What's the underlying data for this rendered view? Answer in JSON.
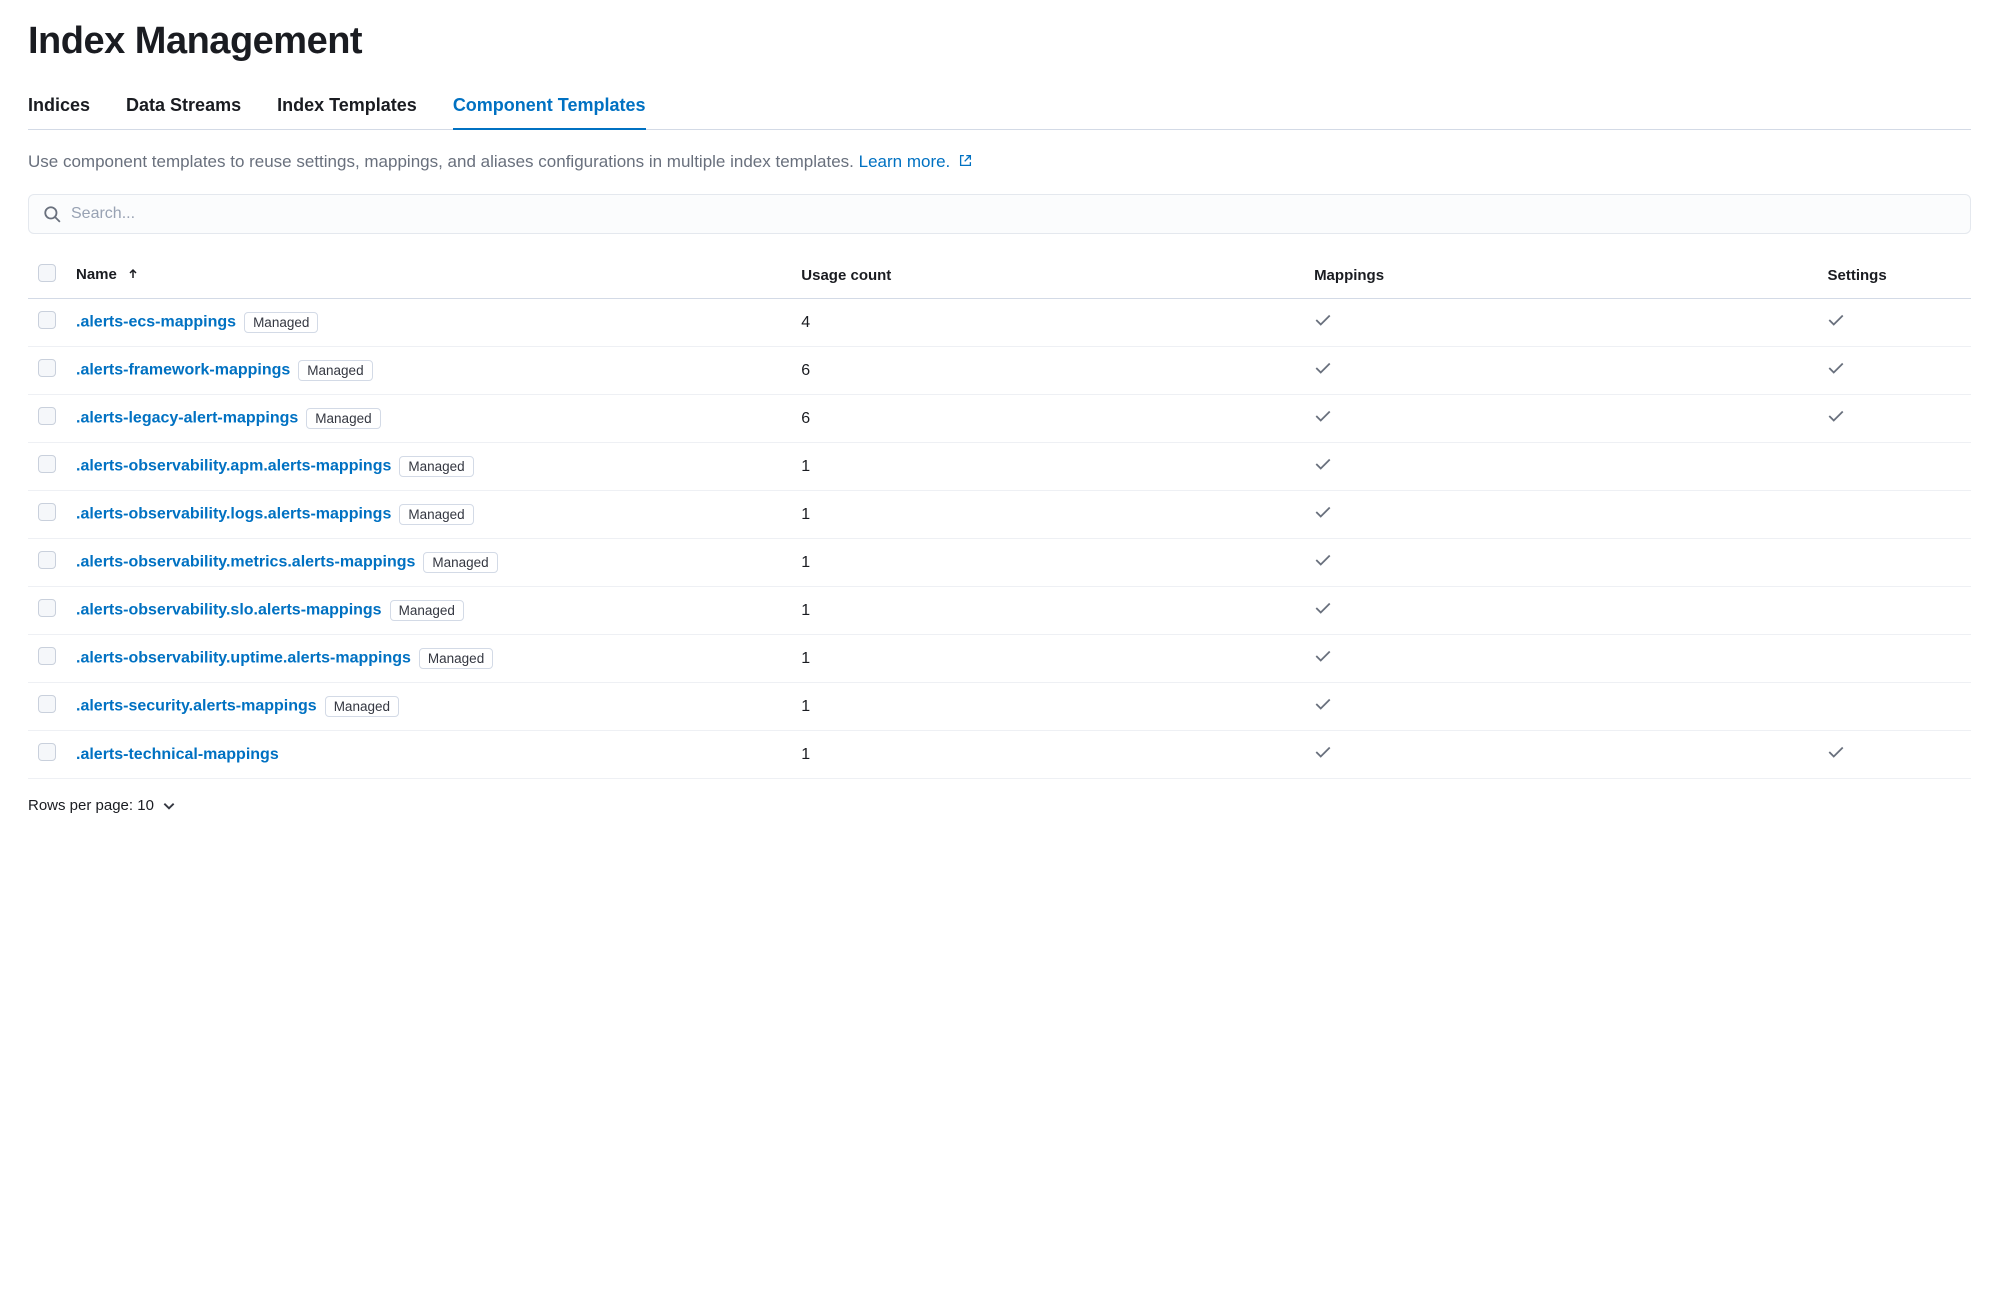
{
  "page": {
    "title": "Index Management",
    "description_prefix": "Use component templates to reuse settings, mappings, and aliases configurations in multiple index templates. ",
    "learn_more": "Learn more."
  },
  "tabs": [
    {
      "label": "Indices",
      "active": false
    },
    {
      "label": "Data Streams",
      "active": false
    },
    {
      "label": "Index Templates",
      "active": false
    },
    {
      "label": "Component Templates",
      "active": true
    }
  ],
  "search": {
    "placeholder": "Search..."
  },
  "columns": {
    "name": "Name",
    "usage": "Usage count",
    "mappings": "Mappings",
    "settings": "Settings"
  },
  "rows": [
    {
      "name": ".alerts-ecs-mappings",
      "badge": "Managed",
      "usage": "4",
      "mappings": true,
      "settings": true
    },
    {
      "name": ".alerts-framework-mappings",
      "badge": "Managed",
      "usage": "6",
      "mappings": true,
      "settings": true
    },
    {
      "name": ".alerts-legacy-alert-mappings",
      "badge": "Managed",
      "usage": "6",
      "mappings": true,
      "settings": true
    },
    {
      "name": ".alerts-observability.apm.alerts-mappings",
      "badge": "Managed",
      "usage": "1",
      "mappings": true,
      "settings": false
    },
    {
      "name": ".alerts-observability.logs.alerts-mappings",
      "badge": "Managed",
      "usage": "1",
      "mappings": true,
      "settings": false
    },
    {
      "name": ".alerts-observability.metrics.alerts-mappings",
      "badge": "Managed",
      "usage": "1",
      "mappings": true,
      "settings": false
    },
    {
      "name": ".alerts-observability.slo.alerts-mappings",
      "badge": "Managed",
      "usage": "1",
      "mappings": true,
      "settings": false
    },
    {
      "name": ".alerts-observability.uptime.alerts-mappings",
      "badge": "Managed",
      "usage": "1",
      "mappings": true,
      "settings": false
    },
    {
      "name": ".alerts-security.alerts-mappings",
      "badge": "Managed",
      "usage": "1",
      "mappings": true,
      "settings": false
    },
    {
      "name": ".alerts-technical-mappings",
      "badge": null,
      "usage": "1",
      "mappings": true,
      "settings": true
    }
  ],
  "pager": {
    "label": "Rows per page: 10"
  },
  "colors": {
    "link": "#0071c2",
    "text": "#1a1c21",
    "muted": "#69707d",
    "border": "#d3dae6",
    "row_border": "#eef0f4"
  }
}
